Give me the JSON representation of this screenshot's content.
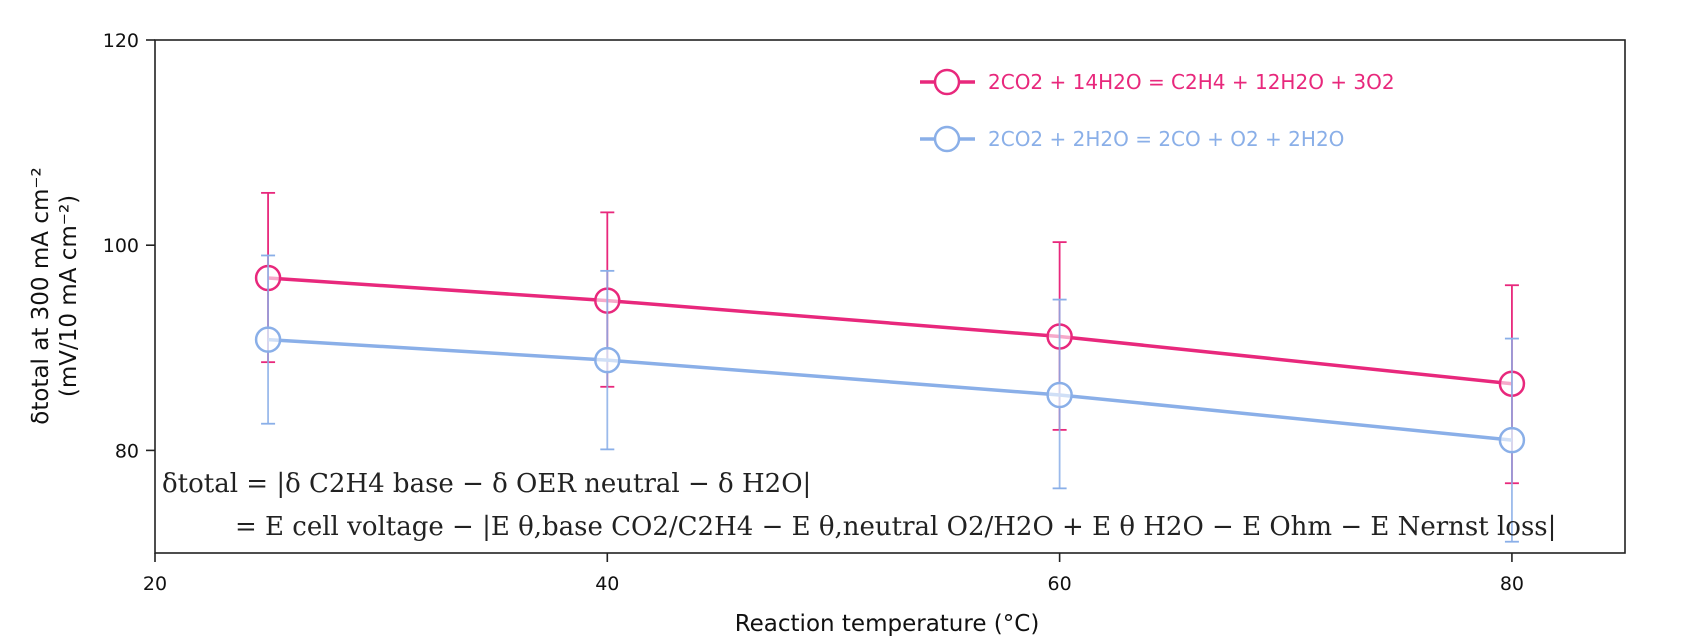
{
  "chart_data": {
    "type": "line",
    "x_values": [
      25,
      40,
      60,
      80
    ],
    "xlabel": "Reaction temperature (°C)",
    "ylabel_line1": "δtotal at 300 mA cm⁻²",
    "ylabel_line2": "(mV/10 mA cm⁻²)",
    "xlim": [
      20,
      85
    ],
    "ylim": [
      70,
      120
    ],
    "x_ticks": [
      20,
      40,
      60,
      80
    ],
    "y_ticks": [
      80,
      100,
      120
    ],
    "grid": false,
    "legend_position": "top-center",
    "series": [
      {
        "name": "2CO2 + 14H2O = C2H4 + 12H2O + 3O2",
        "color": "#e8287c",
        "y": [
          96.8,
          94.6,
          91.1,
          86.5
        ],
        "error_upper": [
          105.1,
          103.2,
          100.3,
          96.1
        ],
        "error_lower": [
          88.6,
          86.2,
          82.0,
          76.8
        ]
      },
      {
        "name": "2CO2 + 2H2O = 2CO + O2 + 2H2O",
        "color": "#8aafe8",
        "y": [
          90.8,
          88.8,
          85.4,
          81.0
        ],
        "error_upper": [
          99.0,
          97.5,
          94.7,
          90.9
        ],
        "error_lower": [
          82.6,
          80.1,
          76.3,
          71.1
        ]
      }
    ],
    "annotation": {
      "line1": "δtotal = |δ C2H4 base − δ OER neutral − δ H2O|",
      "line2": "= E cell voltage − |E θ,base CO2/C2H4 − E θ,neutral O2/H2O + E θ H2O − E Ohm − E Nernst loss|"
    }
  }
}
